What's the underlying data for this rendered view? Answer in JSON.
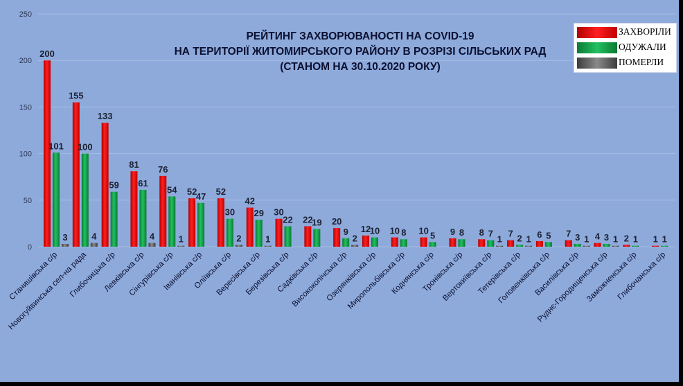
{
  "chart_data": {
    "type": "bar",
    "title_lines": [
      "РЕЙТИНГ ЗАХВОРЮВАНОСТІ НА COVID-19",
      "НА ТЕРИТОРІЇ ЖИТОМИРСЬКОГО РАЙОНУ В РОЗРІЗІ СІЛЬСЬКИХ РАД",
      "(СТАНОМ НА 30.10.2020 РОКУ)"
    ],
    "categories": [
      "Станишівська с/р",
      "Новогуйвинська сел-на рада",
      "Глибочицька с/р",
      "Левківська с/р",
      "Сінгурівська с/р",
      "Іванівська с/р",
      "Оліївська с/р",
      "Вересівська с/р",
      "Березівська с/р",
      "Садківська с/р",
      "Висококопічська с/р",
      "Озерянківська с/р",
      "Миропольбівська с/р",
      "Коднянська с/р",
      "Тронівська с/р",
      "Вертокиївська с/р",
      "Тетерівська  с/р",
      "Головенківська с/р",
      "Василівська с/р",
      "Руднє-Городищенська с/р",
      "Заможненська с/р",
      "Глибочанська с/р"
    ],
    "series": [
      {
        "name": "ЗАХВОРІЛИ",
        "color": "#ee1010",
        "values": [
          200,
          155,
          133,
          81,
          76,
          52,
          52,
          42,
          30,
          22,
          20,
          12,
          10,
          10,
          9,
          8,
          7,
          6,
          7,
          4,
          2,
          1
        ],
        "labels": [
          "200",
          "155",
          "133",
          "81",
          "76",
          "52",
          "52",
          "42",
          "30",
          "22",
          "20",
          "12",
          "10",
          "10",
          "9",
          "8",
          "7",
          "6",
          "7",
          "4",
          "2",
          "1"
        ]
      },
      {
        "name": "ОДУЖАЛИ",
        "color": "#12a84a",
        "values": [
          101,
          100,
          59,
          61,
          54,
          47,
          30,
          29,
          22,
          19,
          9,
          10,
          8,
          5,
          8,
          7,
          2,
          5,
          3,
          3,
          1,
          1
        ],
        "labels": [
          "101",
          "100",
          "59",
          "61",
          "54",
          "47",
          "30",
          "29",
          "22",
          "19",
          "9",
          "10",
          "8",
          "5",
          "8",
          "7",
          "2",
          "5",
          "3",
          "3",
          "1",
          "1"
        ]
      },
      {
        "name": "ПОМЕРЛИ",
        "color": "#6e6e6e",
        "values": [
          3,
          4,
          0,
          4,
          1,
          0,
          2,
          1,
          0,
          0,
          2,
          0,
          0,
          0,
          0,
          1,
          1,
          0,
          1,
          1,
          0,
          0
        ],
        "labels": [
          "3",
          "4",
          "",
          "4",
          "1",
          "",
          "2",
          "1",
          "",
          "",
          "2",
          "",
          "",
          "",
          "",
          "1",
          "1",
          "",
          "1",
          "1",
          "",
          ""
        ]
      }
    ],
    "y_ticks": [
      "0",
      "50",
      "100",
      "150",
      "200",
      "250"
    ],
    "ylim": [
      0,
      250
    ],
    "grid": true,
    "legend": "top-right"
  }
}
